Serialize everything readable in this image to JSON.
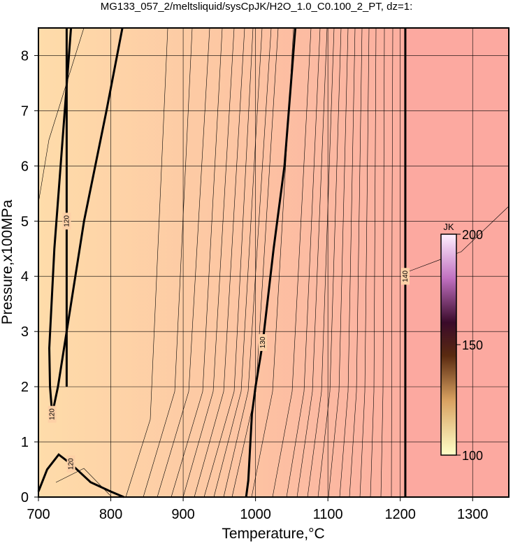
{
  "chart_data": {
    "type": "contour",
    "title": "MG133_057_2/meltsliquid/sysCpJK/H2O_1.0_C0.100_2_PT, dz=1:",
    "xlabel": "Temperature,°C",
    "ylabel": "Pressure,x100MPa",
    "xlim": [
      700,
      1350
    ],
    "xticks": [
      700,
      800,
      900,
      1000,
      1100,
      1200,
      1300
    ],
    "ylim": [
      0,
      8.5
    ],
    "yticks": [
      0,
      1,
      2,
      3,
      4,
      5,
      6,
      7,
      8
    ],
    "grid": true,
    "contours": [
      {
        "level": 120,
        "x": [
          816,
          794,
          763,
          739,
          727,
          719,
          716,
          715,
          722,
          745
        ],
        "y": [
          8.5,
          7,
          5,
          3,
          2,
          1.5,
          2,
          2.7,
          4.5,
          8.5
        ]
      },
      {
        "level": 120,
        "x": [
          700,
          712,
          728,
          745,
          772,
          800,
          818
        ],
        "y": [
          0.1,
          0.5,
          0.77,
          0.6,
          0.27,
          0.1,
          0
        ]
      },
      {
        "level": 120,
        "x": [
          739,
          739,
          739
        ],
        "y": [
          2,
          5,
          8.5
        ]
      },
      {
        "level": 130,
        "x": [
          987,
          990,
          995,
          1000,
          1010,
          1025,
          1040,
          1055
        ],
        "y": [
          0,
          0.3,
          1.5,
          2,
          2.8,
          4.5,
          6,
          8.5
        ]
      },
      {
        "level": 140,
        "x": [
          1207,
          1207,
          1207
        ],
        "y": [
          0,
          4,
          8.5
        ]
      }
    ],
    "colorbar": {
      "label": "JK",
      "lim": [
        100,
        200
      ],
      "ticks": [
        100,
        150,
        200
      ]
    }
  }
}
